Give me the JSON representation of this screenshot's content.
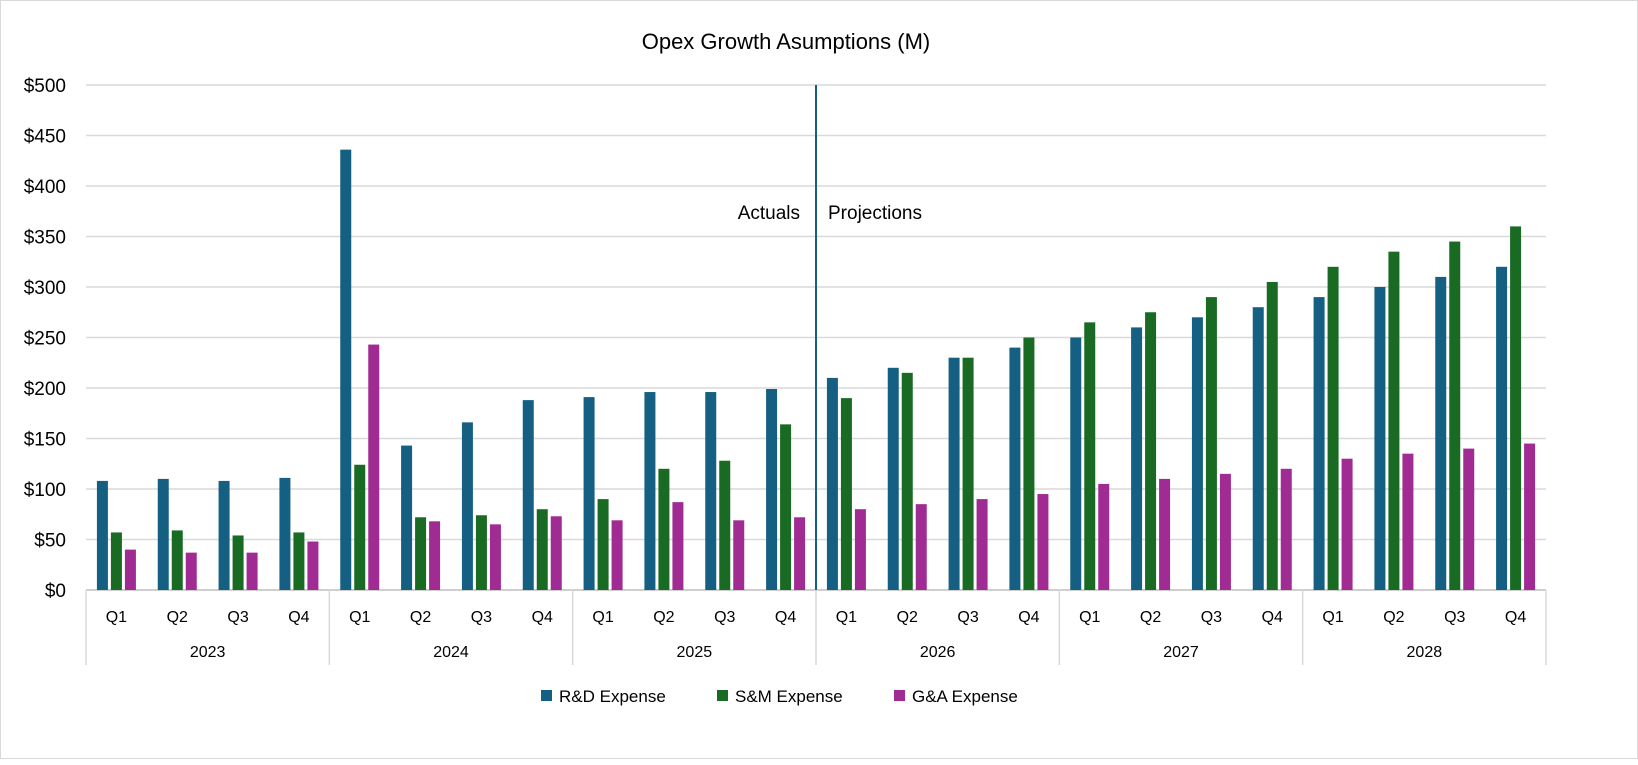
{
  "chart_data": {
    "type": "bar",
    "title": "Opex Growth Asumptions (M)",
    "xlabel": "",
    "ylabel": "",
    "ylim": [
      0,
      500
    ],
    "y_ticks": [
      0,
      50,
      100,
      150,
      200,
      250,
      300,
      350,
      400,
      450,
      500
    ],
    "y_tick_labels": [
      "$0",
      "$50",
      "$100",
      "$150",
      "$200",
      "$250",
      "$300",
      "$350",
      "$400",
      "$450",
      "$500"
    ],
    "grid": true,
    "legend_position": "bottom",
    "years": [
      "2023",
      "2024",
      "2025",
      "2026",
      "2027",
      "2028"
    ],
    "quarters": [
      "Q1",
      "Q2",
      "Q3",
      "Q4"
    ],
    "categories": [
      "2023 Q1",
      "2023 Q2",
      "2023 Q3",
      "2023 Q4",
      "2024 Q1",
      "2024 Q2",
      "2024 Q3",
      "2024 Q4",
      "2025 Q1",
      "2025 Q2",
      "2025 Q3",
      "2025 Q4",
      "2026 Q1",
      "2026 Q2",
      "2026 Q3",
      "2026 Q4",
      "2027 Q1",
      "2027 Q2",
      "2027 Q3",
      "2027 Q4",
      "2028 Q1",
      "2028 Q2",
      "2028 Q3",
      "2028 Q4"
    ],
    "series": [
      {
        "name": "R&D Expense",
        "color": "#156082",
        "values": [
          108,
          110,
          108,
          111,
          436,
          143,
          166,
          188,
          191,
          196,
          196,
          199,
          210,
          220,
          230,
          240,
          250,
          260,
          270,
          280,
          290,
          300,
          310,
          320
        ]
      },
      {
        "name": "S&M Expense",
        "color": "#196b24",
        "values": [
          57,
          59,
          54,
          57,
          124,
          72,
          74,
          80,
          90,
          120,
          128,
          164,
          190,
          215,
          230,
          250,
          265,
          275,
          290,
          305,
          320,
          335,
          345,
          360
        ]
      },
      {
        "name": "G&A Expense",
        "color": "#a02b93",
        "values": [
          40,
          37,
          37,
          48,
          243,
          68,
          65,
          73,
          69,
          87,
          69,
          72,
          80,
          85,
          90,
          95,
          105,
          110,
          115,
          120,
          130,
          135,
          140,
          145
        ]
      }
    ],
    "annotations": {
      "divider_after_category": "2025 Q4",
      "left_label": "Actuals",
      "right_label": "Projections",
      "divider_color": "#156082"
    }
  }
}
